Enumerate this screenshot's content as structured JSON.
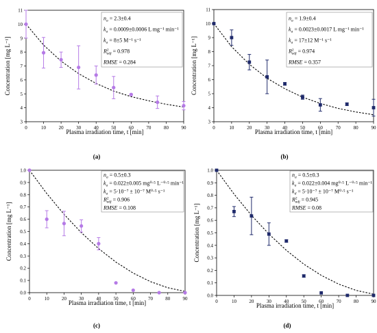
{
  "figure": {
    "colors": {
      "purple": "#b57ae6",
      "navy": "#1f2a6b"
    }
  },
  "chart_data": [
    {
      "id": "a",
      "type": "scatter",
      "panel_label": "(a)",
      "xlabel": "Plasma irradiation time, t [min]",
      "ylabel": "Concentration [mg L⁻¹]",
      "xlim": [
        0,
        90
      ],
      "ylim": [
        3,
        11
      ],
      "xticks": [
        0,
        10,
        20,
        30,
        40,
        50,
        60,
        70,
        80,
        90
      ],
      "yticks": [
        3,
        4,
        5,
        6,
        7,
        8,
        9,
        10,
        11
      ],
      "marker": "circle",
      "color": "#b57ae6",
      "points": [
        {
          "x": 0,
          "y": 10.0,
          "err": 1.0
        },
        {
          "x": 10,
          "y": 7.95,
          "err": 1.1
        },
        {
          "x": 20,
          "y": 7.45,
          "err": 0.55
        },
        {
          "x": 30,
          "y": 6.9,
          "err": 1.55
        },
        {
          "x": 40,
          "y": 6.35,
          "err": 0.65
        },
        {
          "x": 50,
          "y": 5.45,
          "err": 0.8
        },
        {
          "x": 60,
          "y": 4.95,
          "err": 0.05
        },
        {
          "x": 75,
          "y": 4.4,
          "err": 0.45
        },
        {
          "x": 90,
          "y": 4.15,
          "err": 0.3
        }
      ],
      "fit": {
        "x": [
          0,
          10,
          20,
          30,
          40,
          50,
          60,
          70,
          80,
          90
        ],
        "y": [
          10.0,
          8.5,
          7.35,
          6.45,
          5.75,
          5.2,
          4.8,
          4.5,
          4.25,
          4.05
        ]
      },
      "annotation_box": "top-right",
      "annotation": [
        "n",
        "k",
        "k",
        "R",
        "RMSE"
      ],
      "annotation_lines": [
        {
          "sym": "n",
          "sub": "a",
          "text": " = 2.3±0.4"
        },
        {
          "sym": "k",
          "sub": "a",
          "text": " = 0.0009±0.0006 L mg⁻¹ min⁻¹"
        },
        {
          "sym": "k",
          "sub": "a",
          "text": " = 8±5 M⁻¹ s⁻¹"
        },
        {
          "sym": "R",
          "sup": "2",
          "sub": "adj",
          "text": " = 0.978"
        },
        {
          "sym": "RMSE",
          "text": " = 0.284"
        }
      ]
    },
    {
      "id": "b",
      "type": "scatter",
      "panel_label": "(b)",
      "xlabel": "Plasma irradiation time, t [min]",
      "ylabel": "Concentration [mg L⁻¹]",
      "xlim": [
        0,
        90
      ],
      "ylim": [
        3,
        11
      ],
      "xticks": [
        0,
        10,
        20,
        30,
        40,
        50,
        60,
        70,
        80,
        90
      ],
      "yticks": [
        3,
        4,
        5,
        6,
        7,
        8,
        9,
        10,
        11
      ],
      "marker": "square",
      "color": "#1f2a6b",
      "points": [
        {
          "x": 0,
          "y": 10.0,
          "err": 0
        },
        {
          "x": 10,
          "y": 9.0,
          "err": 0.55
        },
        {
          "x": 20,
          "y": 7.25,
          "err": 0.55
        },
        {
          "x": 30,
          "y": 6.2,
          "err": 1.2
        },
        {
          "x": 40,
          "y": 5.7,
          "err": 0.1
        },
        {
          "x": 50,
          "y": 4.75,
          "err": 0.15
        },
        {
          "x": 60,
          "y": 4.2,
          "err": 0.45
        },
        {
          "x": 75,
          "y": 4.25,
          "err": 0.1
        },
        {
          "x": 90,
          "y": 4.0,
          "err": 0.6
        }
      ],
      "fit": {
        "x": [
          0,
          10,
          20,
          30,
          40,
          50,
          60,
          70,
          80,
          90
        ],
        "y": [
          10.0,
          8.35,
          7.1,
          6.1,
          5.35,
          4.75,
          4.3,
          3.95,
          3.7,
          3.5
        ]
      },
      "annotation_box": "top-right",
      "annotation_lines": [
        {
          "sym": "n",
          "sub": "a",
          "text": " = 1.9±0.4"
        },
        {
          "sym": "k",
          "sub": "a",
          "text": " = 0.0023±0.0017 L mg⁻¹ min⁻¹"
        },
        {
          "sym": "k",
          "sub": "a",
          "text": " = 17±12 M⁻¹ s⁻¹"
        },
        {
          "sym": "R",
          "sup": "2",
          "sub": "adj",
          "text": " = 0.974"
        },
        {
          "sym": "RMSE",
          "text": " = 0.357"
        }
      ]
    },
    {
      "id": "c",
      "type": "scatter",
      "panel_label": "(c)",
      "xlabel": "Plasma irradiation time, t [min]",
      "ylabel": "Concentration [mg L⁻¹]",
      "xlim": [
        0,
        90
      ],
      "ylim": [
        0,
        1.0
      ],
      "xticks": [
        0,
        10,
        20,
        30,
        40,
        50,
        60,
        70,
        80,
        90
      ],
      "yticks": [
        0.0,
        0.1,
        0.2,
        0.3,
        0.4,
        0.5,
        0.6,
        0.7,
        0.8,
        0.9,
        1.0
      ],
      "marker": "circle",
      "color": "#b57ae6",
      "points": [
        {
          "x": 0,
          "y": 1.0,
          "err": 0
        },
        {
          "x": 10,
          "y": 0.6,
          "err": 0.07
        },
        {
          "x": 20,
          "y": 0.565,
          "err": 0.1
        },
        {
          "x": 30,
          "y": 0.545,
          "err": 0.05
        },
        {
          "x": 40,
          "y": 0.4,
          "err": 0.05
        },
        {
          "x": 50,
          "y": 0.08,
          "err": 0
        },
        {
          "x": 60,
          "y": 0.02,
          "err": 0
        },
        {
          "x": 75,
          "y": 0.0,
          "err": 0
        },
        {
          "x": 90,
          "y": 0.0,
          "err": 0
        }
      ],
      "fit": {
        "x": [
          0,
          10,
          20,
          30,
          40,
          50,
          60,
          70,
          80,
          90
        ],
        "y": [
          1.0,
          0.81,
          0.64,
          0.49,
          0.36,
          0.25,
          0.16,
          0.09,
          0.04,
          0.01
        ]
      },
      "annotation_box": "top-right",
      "annotation_lines": [
        {
          "sym": "n",
          "sub": "a",
          "text": " = 0.5±0.3"
        },
        {
          "sym": "k",
          "sub": "a",
          "text": " = 0.022±0.005 mg⁰·⁵ L⁻⁰·⁵ min⁻¹"
        },
        {
          "sym": "k",
          "sub": "a",
          "text": " = 5·10⁻⁷ ± 10⁻⁷ M⁰·⁵ s⁻¹"
        },
        {
          "sym": "R",
          "sup": "2",
          "sub": "adj",
          "text": " = 0.906"
        },
        {
          "sym": "RMSE",
          "text": " = 0.108"
        }
      ]
    },
    {
      "id": "d",
      "type": "scatter",
      "panel_label": "(d)",
      "xlabel": "Plasma irradiation time, t [min]",
      "ylabel": "Concentration [mg L⁻¹]",
      "xlim": [
        0,
        90
      ],
      "ylim": [
        0,
        1.0
      ],
      "xticks": [
        0,
        10,
        20,
        30,
        40,
        50,
        60,
        70,
        80,
        90
      ],
      "yticks": [
        0.0,
        0.1,
        0.2,
        0.3,
        0.4,
        0.5,
        0.6,
        0.7,
        0.8,
        0.9,
        1.0
      ],
      "marker": "square",
      "color": "#1f2a6b",
      "points": [
        {
          "x": 0,
          "y": 1.0,
          "err": 0
        },
        {
          "x": 10,
          "y": 0.67,
          "err": 0.04
        },
        {
          "x": 20,
          "y": 0.635,
          "err": 0.15
        },
        {
          "x": 30,
          "y": 0.49,
          "err": 0.09
        },
        {
          "x": 40,
          "y": 0.435,
          "err": 0.01
        },
        {
          "x": 50,
          "y": 0.155,
          "err": 0.01
        },
        {
          "x": 60,
          "y": 0.02,
          "err": 0
        },
        {
          "x": 75,
          "y": 0.0,
          "err": 0
        },
        {
          "x": 90,
          "y": 0.0,
          "err": 0
        }
      ],
      "fit": {
        "x": [
          0,
          10,
          20,
          30,
          40,
          50,
          60,
          70,
          80,
          90
        ],
        "y": [
          1.0,
          0.81,
          0.64,
          0.49,
          0.36,
          0.25,
          0.16,
          0.09,
          0.04,
          0.01
        ]
      },
      "annotation_box": "top-right",
      "annotation_lines": [
        {
          "sym": "n",
          "sub": "a",
          "text": " = 0.5±0.3"
        },
        {
          "sym": "k",
          "sub": "a",
          "text": " = 0.022±0.004 mg⁰·⁵ L⁻⁰·⁵ min⁻¹"
        },
        {
          "sym": "k",
          "sub": "d",
          "text": " = 5·10⁻⁷ ± 10⁻⁷ M⁰·⁵ s⁻¹"
        },
        {
          "sym": "R",
          "sup": "2",
          "sub": "adj",
          "text": " = 0.945"
        },
        {
          "sym": "RMSE",
          "text": " = 0.08"
        }
      ]
    }
  ]
}
